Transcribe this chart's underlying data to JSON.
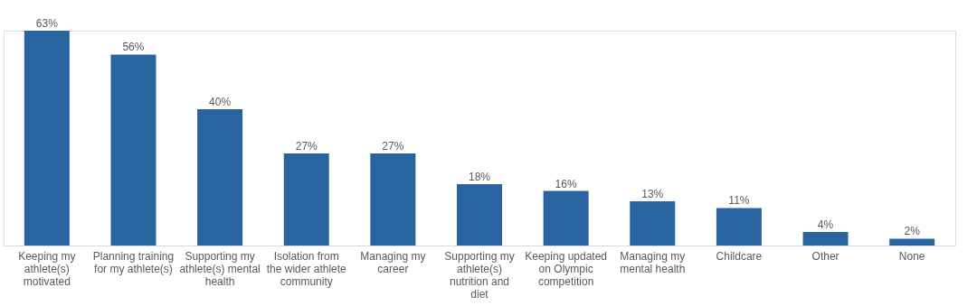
{
  "chart_data": {
    "type": "bar",
    "categories": [
      "Keeping my athlete(s) motivated",
      "Planning training for my athlete(s)",
      "Supporting my athlete(s) mental health",
      "Isolation from the wider athlete community",
      "Managing my career",
      "Supporting my athlete(s) nutrition and diet",
      "Keeping updated on Olympic competition",
      "Managing my mental health",
      "Childcare",
      "Other",
      "None"
    ],
    "values": [
      63,
      56,
      40,
      27,
      27,
      18,
      16,
      13,
      11,
      4,
      2
    ],
    "value_labels": [
      "63%",
      "56%",
      "40%",
      "27%",
      "27%",
      "18%",
      "16%",
      "13%",
      "11%",
      "4%",
      "2%"
    ],
    "color": "#2a64a0",
    "grid": false
  }
}
